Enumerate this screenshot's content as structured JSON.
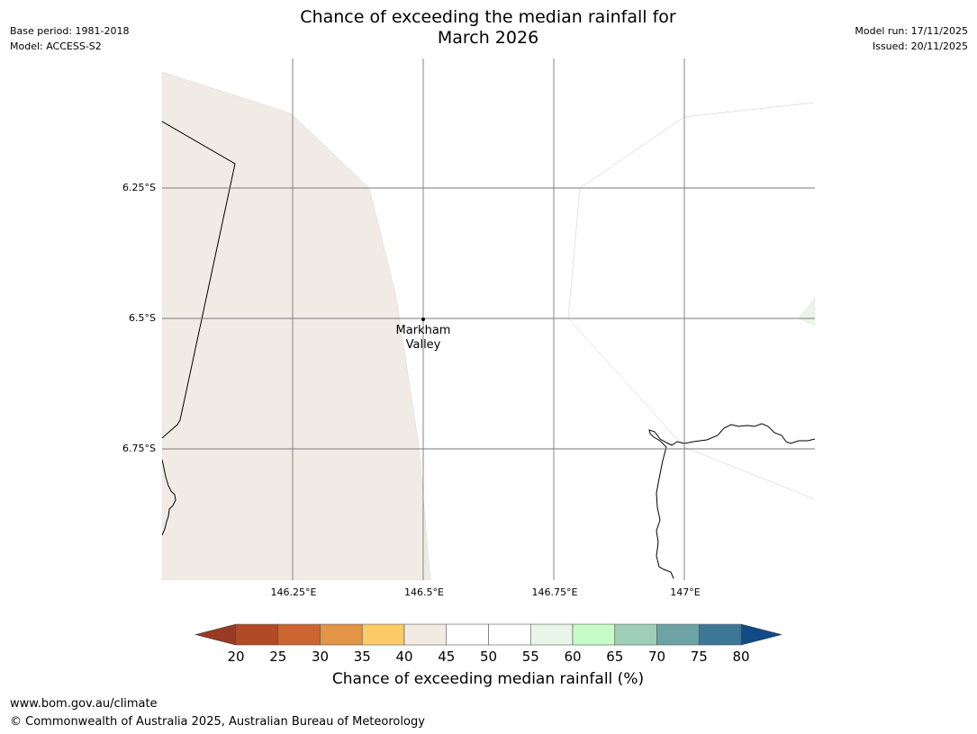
{
  "title_line1": "Chance of exceeding the median rainfall for",
  "title_line2": "March 2026",
  "meta_left": {
    "base_period": "Base period: 1981-2018",
    "model": "Model: ACCESS-S2"
  },
  "meta_right": {
    "model_run": "Model run: 17/11/2025",
    "issued": "Issued: 20/11/2025"
  },
  "latitude_labels": [
    "6.25°S",
    "6.5°S",
    "6.75°S"
  ],
  "longitude_labels": [
    "146.25°E",
    "146.5°E",
    "146.75°E",
    "147°E"
  ],
  "place": {
    "line1": "Markham",
    "line2": "Valley"
  },
  "colorbar": {
    "label": "Chance of exceeding median rainfall (%)",
    "ticks": [
      "20",
      "25",
      "30",
      "35",
      "40",
      "45",
      "50",
      "55",
      "60",
      "65",
      "70",
      "75",
      "80"
    ],
    "low_extend_color": "#9a3a24",
    "high_extend_color": "#124a86",
    "bin_colors": [
      "#b24a26",
      "#cc6530",
      "#e39444",
      "#fdcb65",
      "#f1ebe4",
      "#ffffff",
      "#ffffff",
      "#e9f5e9",
      "#c7fcc7",
      "#9ecfb6",
      "#6ea3a6",
      "#3e7696"
    ]
  },
  "footer": {
    "url": "www.bom.gov.au/climate",
    "copyright": "© Commonwealth of Australia 2025, Australian Bureau of Meteorology"
  }
}
